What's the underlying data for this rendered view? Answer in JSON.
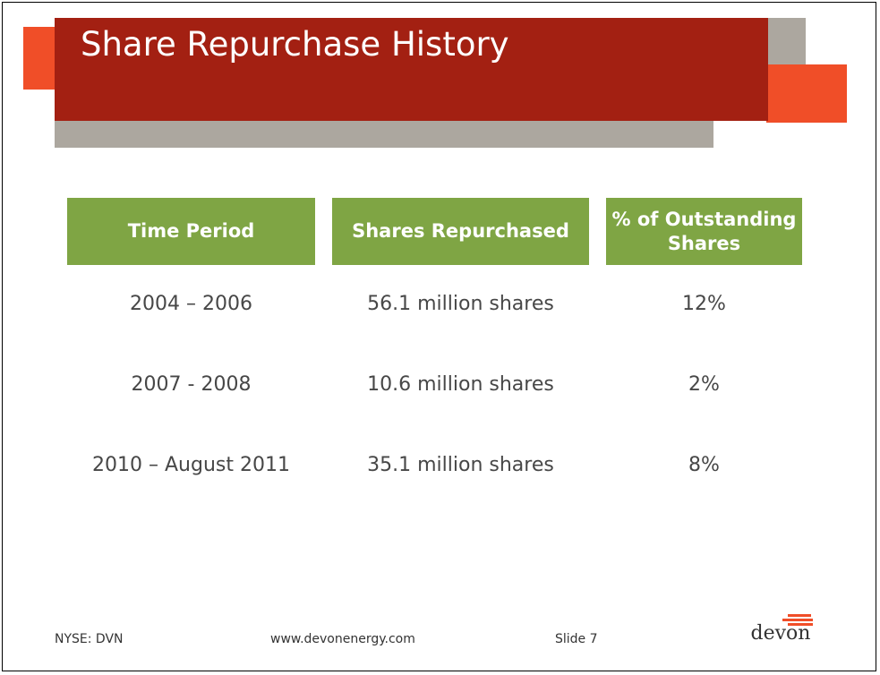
{
  "slide": {
    "title": "Share Repurchase History"
  },
  "table": {
    "headers": [
      "Time Period",
      "Shares Repurchased",
      "% of Outstanding Shares"
    ],
    "rows": [
      [
        "2004 – 2006",
        "56.1 million shares",
        "12%"
      ],
      [
        "2007 - 2008",
        "10.6 million shares",
        "2%"
      ],
      [
        "2010 – August 2011",
        "35.1 million shares",
        "8%"
      ]
    ]
  },
  "footer": {
    "ticker": "NYSE: DVN",
    "url": "www.devonenergy.com",
    "slide_number": "Slide 7",
    "logo_text": "devon"
  },
  "colors": {
    "title_bar": "#a32012",
    "accent_orange": "#f04e28",
    "gray_bar": "#aca79f",
    "header_green": "#7fa544"
  }
}
